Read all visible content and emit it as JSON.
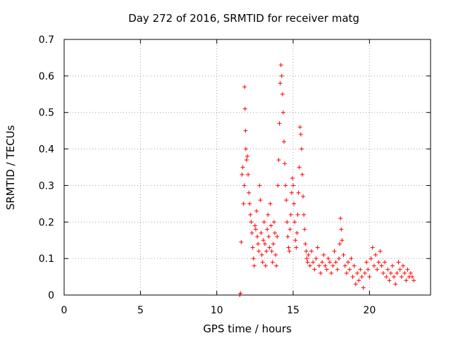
{
  "chart_data": {
    "type": "scatter",
    "title": "Day 272 of 2016, SRMTID for receiver matg",
    "xlabel": "GPS time / hours",
    "ylabel": "SRMTID / TECUs",
    "xlim": [
      0,
      24
    ],
    "ylim": [
      0,
      0.7
    ],
    "x_ticks": [
      "0",
      "5",
      "10",
      "15",
      "20"
    ],
    "y_ticks": [
      "0",
      "0.1",
      "0.2",
      "0.3",
      "0.4",
      "0.5",
      "0.6",
      "0.7"
    ],
    "grid": true,
    "marker": "+",
    "color": "#ff0000",
    "series": [
      {
        "name": "SRMTID",
        "points": [
          [
            11.5,
            0.0
          ],
          [
            11.55,
            0.005
          ],
          [
            11.6,
            0.145
          ],
          [
            11.65,
            0.33
          ],
          [
            11.7,
            0.35
          ],
          [
            11.75,
            0.25
          ],
          [
            11.8,
            0.3
          ],
          [
            11.82,
            0.57
          ],
          [
            11.85,
            0.51
          ],
          [
            11.88,
            0.45
          ],
          [
            11.9,
            0.4
          ],
          [
            11.95,
            0.37
          ],
          [
            12.0,
            0.38
          ],
          [
            12.05,
            0.33
          ],
          [
            12.1,
            0.28
          ],
          [
            12.15,
            0.25
          ],
          [
            12.2,
            0.22
          ],
          [
            12.25,
            0.2
          ],
          [
            12.3,
            0.17
          ],
          [
            12.35,
            0.13
          ],
          [
            12.4,
            0.1
          ],
          [
            12.45,
            0.08
          ],
          [
            12.5,
            0.19
          ],
          [
            12.55,
            0.18
          ],
          [
            12.6,
            0.23
          ],
          [
            12.65,
            0.16
          ],
          [
            12.7,
            0.14
          ],
          [
            12.75,
            0.12
          ],
          [
            12.8,
            0.3
          ],
          [
            12.85,
            0.26
          ],
          [
            12.9,
            0.17
          ],
          [
            12.95,
            0.11
          ],
          [
            13.0,
            0.09
          ],
          [
            13.05,
            0.15
          ],
          [
            13.1,
            0.2
          ],
          [
            13.15,
            0.14
          ],
          [
            13.2,
            0.08
          ],
          [
            13.25,
            0.12
          ],
          [
            13.3,
            0.18
          ],
          [
            13.35,
            0.22
          ],
          [
            13.4,
            0.16
          ],
          [
            13.45,
            0.13
          ],
          [
            13.5,
            0.25
          ],
          [
            13.55,
            0.19
          ],
          [
            13.6,
            0.12
          ],
          [
            13.65,
            0.09
          ],
          [
            13.7,
            0.14
          ],
          [
            13.75,
            0.2
          ],
          [
            13.8,
            0.17
          ],
          [
            13.85,
            0.11
          ],
          [
            13.9,
            0.08
          ],
          [
            13.95,
            0.16
          ],
          [
            14.0,
            0.3
          ],
          [
            14.05,
            0.37
          ],
          [
            14.1,
            0.47
          ],
          [
            14.15,
            0.58
          ],
          [
            14.2,
            0.63
          ],
          [
            14.25,
            0.6
          ],
          [
            14.3,
            0.55
          ],
          [
            14.35,
            0.5
          ],
          [
            14.4,
            0.42
          ],
          [
            14.45,
            0.36
          ],
          [
            14.5,
            0.3
          ],
          [
            14.55,
            0.26
          ],
          [
            14.6,
            0.2
          ],
          [
            14.65,
            0.16
          ],
          [
            14.7,
            0.13
          ],
          [
            14.75,
            0.12
          ],
          [
            14.8,
            0.18
          ],
          [
            14.85,
            0.22
          ],
          [
            14.9,
            0.28
          ],
          [
            14.95,
            0.32
          ],
          [
            15.0,
            0.3
          ],
          [
            15.05,
            0.25
          ],
          [
            15.1,
            0.2
          ],
          [
            15.15,
            0.15
          ],
          [
            15.2,
            0.13
          ],
          [
            15.25,
            0.17
          ],
          [
            15.3,
            0.22
          ],
          [
            15.35,
            0.28
          ],
          [
            15.4,
            0.35
          ],
          [
            15.45,
            0.46
          ],
          [
            15.5,
            0.44
          ],
          [
            15.55,
            0.4
          ],
          [
            15.6,
            0.33
          ],
          [
            15.65,
            0.27
          ],
          [
            15.7,
            0.22
          ],
          [
            15.75,
            0.18
          ],
          [
            15.8,
            0.14
          ],
          [
            15.85,
            0.12
          ],
          [
            15.9,
            0.1
          ],
          [
            15.95,
            0.09
          ],
          [
            16.0,
            0.11
          ],
          [
            16.1,
            0.08
          ],
          [
            16.2,
            0.12
          ],
          [
            16.3,
            0.09
          ],
          [
            16.4,
            0.07
          ],
          [
            16.5,
            0.1
          ],
          [
            16.6,
            0.13
          ],
          [
            16.7,
            0.08
          ],
          [
            16.8,
            0.06
          ],
          [
            16.9,
            0.09
          ],
          [
            17.0,
            0.11
          ],
          [
            17.1,
            0.08
          ],
          [
            17.2,
            0.07
          ],
          [
            17.3,
            0.1
          ],
          [
            17.4,
            0.09
          ],
          [
            17.5,
            0.06
          ],
          [
            17.6,
            0.08
          ],
          [
            17.7,
            0.12
          ],
          [
            17.8,
            0.09
          ],
          [
            17.9,
            0.07
          ],
          [
            18.0,
            0.1
          ],
          [
            18.05,
            0.14
          ],
          [
            18.1,
            0.21
          ],
          [
            18.15,
            0.18
          ],
          [
            18.2,
            0.15
          ],
          [
            18.3,
            0.11
          ],
          [
            18.4,
            0.08
          ],
          [
            18.5,
            0.06
          ],
          [
            18.6,
            0.09
          ],
          [
            18.7,
            0.07
          ],
          [
            18.8,
            0.1
          ],
          [
            18.9,
            0.05
          ],
          [
            19.0,
            0.08
          ],
          [
            19.1,
            0.03
          ],
          [
            19.2,
            0.06
          ],
          [
            19.3,
            0.04
          ],
          [
            19.4,
            0.07
          ],
          [
            19.5,
            0.05
          ],
          [
            19.6,
            0.02
          ],
          [
            19.7,
            0.06
          ],
          [
            19.8,
            0.09
          ],
          [
            19.9,
            0.07
          ],
          [
            20.0,
            0.05
          ],
          [
            20.1,
            0.1
          ],
          [
            20.2,
            0.13
          ],
          [
            20.3,
            0.08
          ],
          [
            20.4,
            0.11
          ],
          [
            20.5,
            0.07
          ],
          [
            20.6,
            0.09
          ],
          [
            20.7,
            0.12
          ],
          [
            20.8,
            0.08
          ],
          [
            20.9,
            0.06
          ],
          [
            21.0,
            0.09
          ],
          [
            21.1,
            0.05
          ],
          [
            21.2,
            0.07
          ],
          [
            21.3,
            0.04
          ],
          [
            21.4,
            0.06
          ],
          [
            21.5,
            0.08
          ],
          [
            21.6,
            0.05
          ],
          [
            21.7,
            0.03
          ],
          [
            21.8,
            0.06
          ],
          [
            21.9,
            0.09
          ],
          [
            22.0,
            0.07
          ],
          [
            22.1,
            0.05
          ],
          [
            22.2,
            0.08
          ],
          [
            22.3,
            0.06
          ],
          [
            22.4,
            0.04
          ],
          [
            22.5,
            0.07
          ],
          [
            22.6,
            0.05
          ],
          [
            22.7,
            0.06
          ],
          [
            22.8,
            0.05
          ],
          [
            22.9,
            0.04
          ]
        ]
      }
    ]
  }
}
